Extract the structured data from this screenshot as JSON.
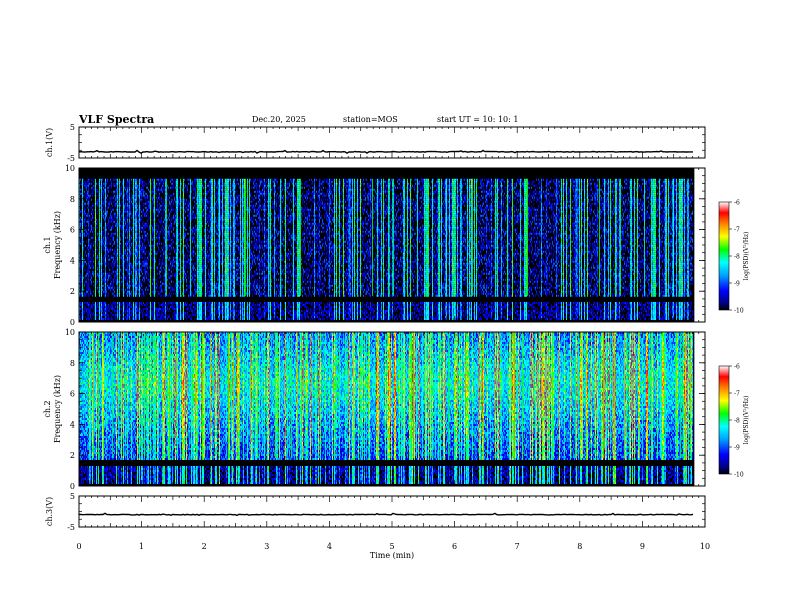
{
  "header": {
    "title": "VLF Spectra",
    "date": "Dec.20, 2025",
    "station": "station=MOS",
    "start": "start UT =  10: 10: 1"
  },
  "chart_data": [
    {
      "type": "line",
      "name": "waveform-ch1",
      "ylabel": "ch.1(V)",
      "ylim": [
        -5,
        5
      ],
      "yticks": [
        "5",
        "-5"
      ],
      "baseline": -3.0,
      "xlim": [
        0,
        10
      ]
    },
    {
      "type": "heatmap",
      "name": "spectrogram-ch1",
      "ylabel_line1": "ch.1",
      "ylabel_line2": "Frequency (kHz)",
      "ylim": [
        0,
        10
      ],
      "yticks": [
        "0",
        "2",
        "4",
        "6",
        "8",
        "10"
      ],
      "xlim": [
        0,
        9.83
      ],
      "activity_band_khz": [
        1.7,
        9.3
      ],
      "low_band_khz": [
        0.2,
        1.3
      ],
      "intensity": "low",
      "colorbar": {
        "label": "log(PSD)(V²/Hz)",
        "ticks": [
          "-6",
          "-7",
          "-8",
          "-9",
          "-10"
        ],
        "range": [
          -10,
          -6
        ]
      }
    },
    {
      "type": "heatmap",
      "name": "spectrogram-ch2",
      "ylabel_line1": "ch.2",
      "ylabel_line2": "Frequency (kHz)",
      "ylim": [
        0,
        10
      ],
      "yticks": [
        "0",
        "2",
        "4",
        "6",
        "8",
        "10"
      ],
      "xlim": [
        0,
        9.83
      ],
      "activity_band_khz": [
        1.8,
        10
      ],
      "peak_band_khz": [
        5.5,
        8.0
      ],
      "low_band_khz": [
        0.2,
        1.3
      ],
      "intensity": "high",
      "colorbar": {
        "label": "log(PSD)(V²/Hz)",
        "ticks": [
          "-6",
          "-7",
          "-8",
          "-9",
          "-10"
        ],
        "range": [
          -10,
          -6
        ]
      }
    },
    {
      "type": "line",
      "name": "waveform-ch3",
      "ylabel": "ch.3(V)",
      "ylim": [
        -5,
        5
      ],
      "yticks": [
        "5",
        "-5"
      ],
      "baseline": -1.0,
      "xlim": [
        0,
        10
      ]
    }
  ],
  "xaxis": {
    "label": "Time (min)",
    "ticks": [
      "0",
      "1",
      "2",
      "3",
      "4",
      "5",
      "6",
      "7",
      "8",
      "9",
      "10"
    ],
    "range": [
      0,
      10
    ]
  },
  "colors": {
    "colormap": [
      "#000000",
      "#00007f",
      "#0000ff",
      "#00a0ff",
      "#00ffff",
      "#00ff00",
      "#ffff00",
      "#ff8000",
      "#ff0000",
      "#ffffff"
    ]
  }
}
